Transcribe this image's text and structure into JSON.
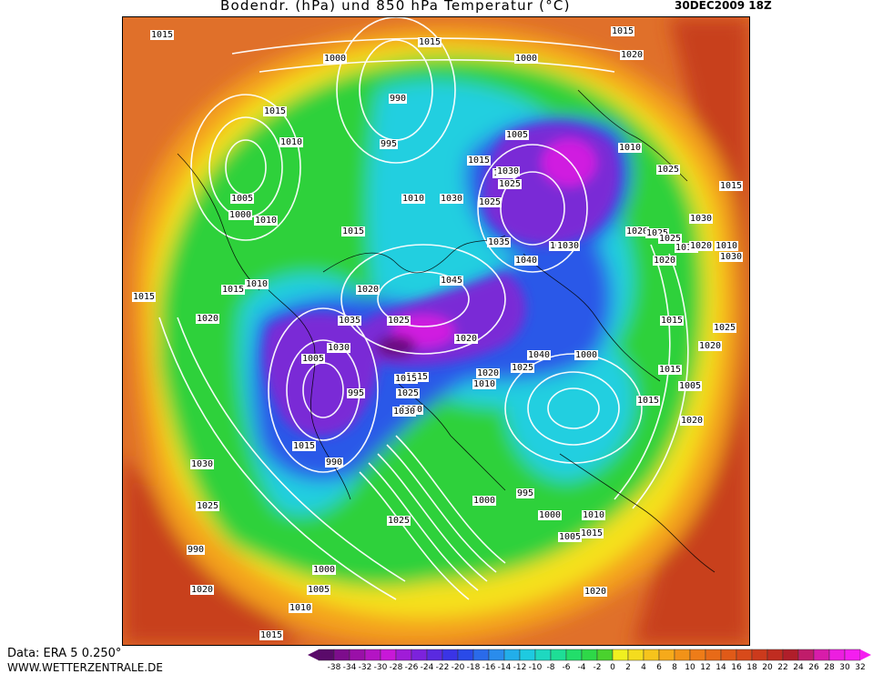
{
  "header": {
    "title": "Bodendr. (hPa) und 850 hPa Temperatur (°C)",
    "datetime": "30DEC2009 18Z"
  },
  "footer": {
    "source": "Data: ERA 5 0.250°",
    "website": "WWW.WETTERZENTRALE.DE"
  },
  "colors": {
    "map_background": "#e0702a",
    "warm_edge": "#c8401e",
    "orange": "#f4a21c",
    "yellow": "#f5e11e",
    "green": "#2fd13a",
    "cyan": "#22cfe0",
    "blue": "#2a58e8",
    "purple": "#7a2ad6",
    "magenta": "#d01ee0",
    "isobar": "#ffffff",
    "coastline": "#000000"
  },
  "legend": {
    "scale": [
      "-38",
      "-34",
      "-32",
      "-30",
      "-28",
      "-26",
      "-24",
      "-22",
      "-20",
      "-18",
      "-16",
      "-14",
      "-12",
      "-10",
      "-8",
      "-6",
      "-4",
      "-2",
      "0",
      "2",
      "4",
      "6",
      "8",
      "10",
      "12",
      "14",
      "16",
      "18",
      "20",
      "22",
      "24",
      "26",
      "28",
      "30",
      "32"
    ],
    "colors": [
      "#5a0a6a",
      "#7d0d8c",
      "#9a10a8",
      "#b414c4",
      "#c818d8",
      "#a01cd8",
      "#7c22dc",
      "#5a2ae0",
      "#3a34e6",
      "#2a4ae8",
      "#2a6aea",
      "#2a8cec",
      "#22aeea",
      "#1ecae0",
      "#1ed8c0",
      "#1ede96",
      "#22de6a",
      "#2ed848",
      "#4ad22e",
      "#f0f020",
      "#f4dc1e",
      "#f6c41c",
      "#f6aa1a",
      "#f29218",
      "#ee7c18",
      "#e86a18",
      "#e05a18",
      "#d84a1a",
      "#cc3a1c",
      "#c02c20",
      "#b01e2a",
      "#c01c6a",
      "#d81caa",
      "#ec1ee0",
      "#f41ef0"
    ]
  },
  "isobar_labels": [
    "1015",
    "1015",
    "1015",
    "1020",
    "1000",
    "1000",
    "990",
    "1015",
    "995",
    "1010",
    "1005",
    "1010",
    "1015",
    "1020",
    "1030",
    "1025",
    "1025",
    "1025",
    "1010",
    "1005",
    "1000",
    "1010",
    "1015",
    "1030",
    "1035",
    "1035",
    "1030",
    "1020",
    "1025",
    "1015",
    "1025",
    "1030",
    "1040",
    "1020",
    "1010",
    "1015",
    "1020",
    "1015",
    "1045",
    "1020",
    "1035",
    "1025",
    "1020",
    "1015",
    "1030",
    "1040",
    "1000",
    "1005",
    "1015",
    "995",
    "1010",
    "1025",
    "1015",
    "1030",
    "1020",
    "1015",
    "990",
    "1025",
    "1030",
    "1000",
    "995",
    "1005",
    "1000",
    "1010",
    "1025",
    "1030",
    "1025",
    "990",
    "1020",
    "1000",
    "1005",
    "1010",
    "1015",
    "1015",
    "1020",
    "1015",
    "1020",
    "1010",
    "1015",
    "1020",
    "1030",
    "1025",
    "1015",
    "1020",
    "1005"
  ]
}
